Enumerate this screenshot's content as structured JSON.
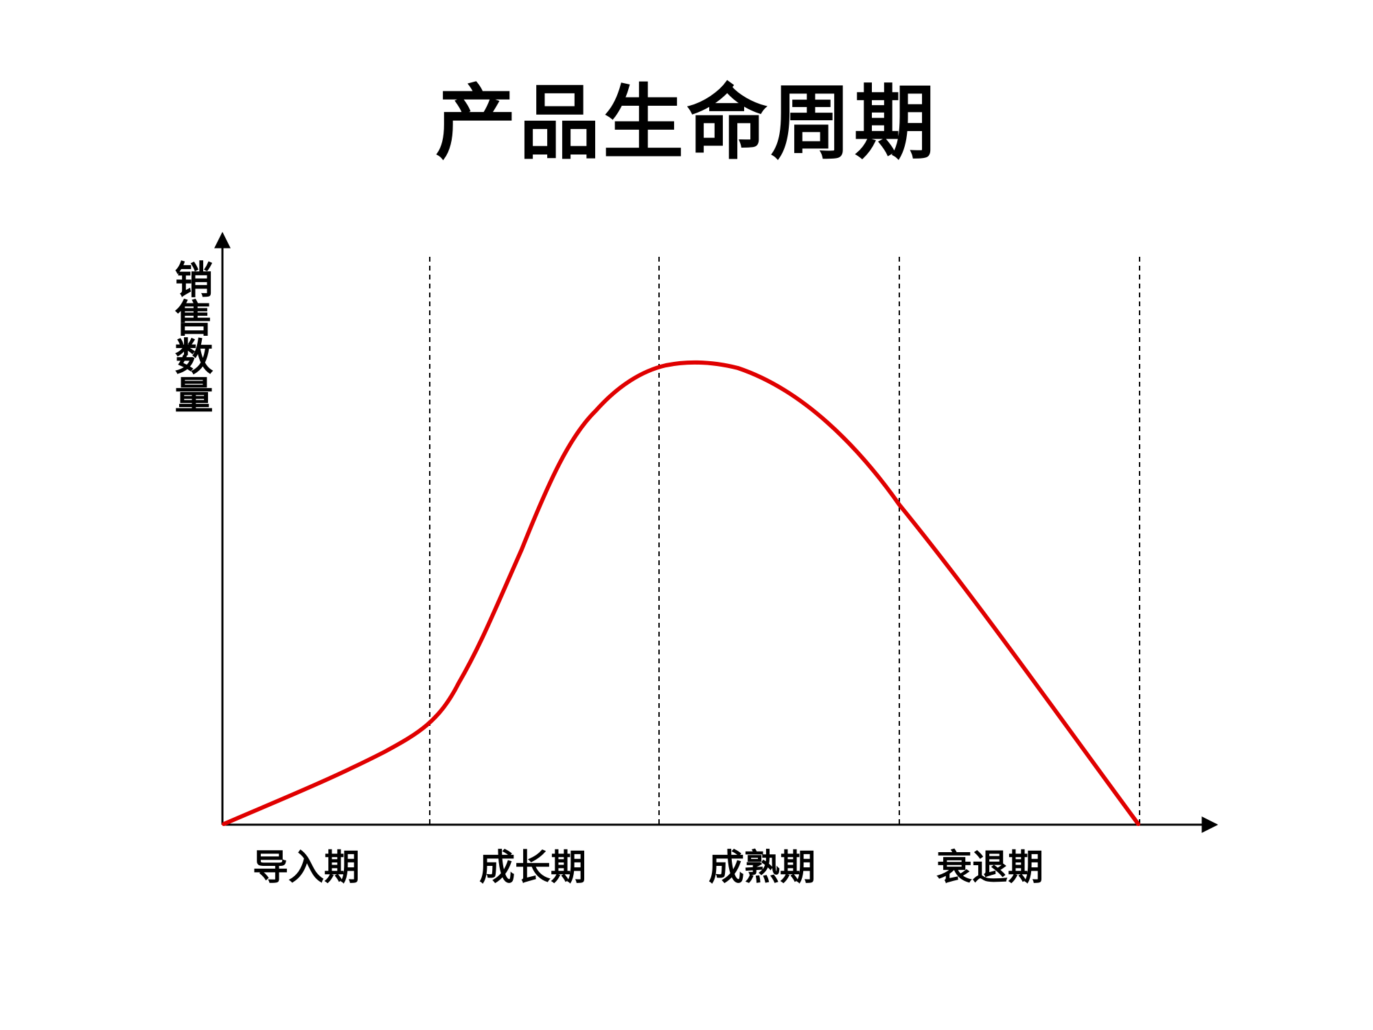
{
  "title": "产品生命周期",
  "axis": {
    "y_label": "销售数量"
  },
  "stages": [
    {
      "label": "导入期"
    },
    {
      "label": "成长期"
    },
    {
      "label": "成熟期"
    },
    {
      "label": "衰退期"
    }
  ],
  "curve_color": "#e00000",
  "axis_color": "#000000"
}
